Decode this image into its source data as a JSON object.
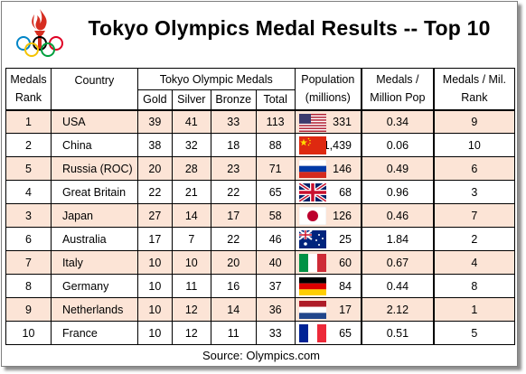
{
  "title": "Tokyo Olympics Medal Results -- Top 10",
  "headers": {
    "medals_rank": "Medals Rank",
    "country": "Country",
    "tokyo_medals": "Tokyo Olympic Medals",
    "gold": "Gold",
    "silver": "Silver",
    "bronze": "Bronze",
    "total": "Total",
    "population": "Population (millions)",
    "medals_per_million": "Medals / Million Pop",
    "medals_per_mil_rank": "Medals / Mil. Rank"
  },
  "rows": [
    {
      "rank": "1",
      "country": "USA",
      "gold": "39",
      "silver": "41",
      "bronze": "33",
      "total": "113",
      "flag": "usa-flag-icon",
      "pop": "331",
      "per_million": "0.34",
      "pm_rank": "9"
    },
    {
      "rank": "2",
      "country": "China",
      "gold": "38",
      "silver": "32",
      "bronze": "18",
      "total": "88",
      "flag": "china-flag-icon",
      "pop": "1,439",
      "per_million": "0.06",
      "pm_rank": "10"
    },
    {
      "rank": "5",
      "country": "Russia (ROC)",
      "gold": "20",
      "silver": "28",
      "bronze": "23",
      "total": "71",
      "flag": "russia-flag-icon",
      "pop": "146",
      "per_million": "0.49",
      "pm_rank": "6"
    },
    {
      "rank": "4",
      "country": "Great Britain",
      "gold": "22",
      "silver": "21",
      "bronze": "22",
      "total": "65",
      "flag": "uk-flag-icon",
      "pop": "68",
      "per_million": "0.96",
      "pm_rank": "3"
    },
    {
      "rank": "3",
      "country": "Japan",
      "gold": "27",
      "silver": "14",
      "bronze": "17",
      "total": "58",
      "flag": "japan-flag-icon",
      "pop": "126",
      "per_million": "0.46",
      "pm_rank": "7"
    },
    {
      "rank": "6",
      "country": "Australia",
      "gold": "17",
      "silver": "7",
      "bronze": "22",
      "total": "46",
      "flag": "australia-flag-icon",
      "pop": "25",
      "per_million": "1.84",
      "pm_rank": "2"
    },
    {
      "rank": "7",
      "country": "Italy",
      "gold": "10",
      "silver": "10",
      "bronze": "20",
      "total": "40",
      "flag": "italy-flag-icon",
      "pop": "60",
      "per_million": "0.67",
      "pm_rank": "4"
    },
    {
      "rank": "8",
      "country": "Germany",
      "gold": "10",
      "silver": "11",
      "bronze": "16",
      "total": "37",
      "flag": "germany-flag-icon",
      "pop": "84",
      "per_million": "0.44",
      "pm_rank": "8"
    },
    {
      "rank": "9",
      "country": "Netherlands",
      "gold": "10",
      "silver": "12",
      "bronze": "14",
      "total": "36",
      "flag": "netherlands-flag-icon",
      "pop": "17",
      "per_million": "2.12",
      "pm_rank": "1"
    },
    {
      "rank": "10",
      "country": "France",
      "gold": "10",
      "silver": "12",
      "bronze": "11",
      "total": "33",
      "flag": "france-flag-icon",
      "pop": "65",
      "per_million": "0.51",
      "pm_rank": "5"
    }
  ],
  "source": "Source: Olympics.com",
  "colors": {
    "row_stripe": "#fce4d6",
    "olympic_blue": "#0085c7",
    "olympic_yellow": "#f4c300",
    "olympic_black": "#000000",
    "olympic_green": "#009f3d",
    "olympic_red": "#df0024"
  }
}
